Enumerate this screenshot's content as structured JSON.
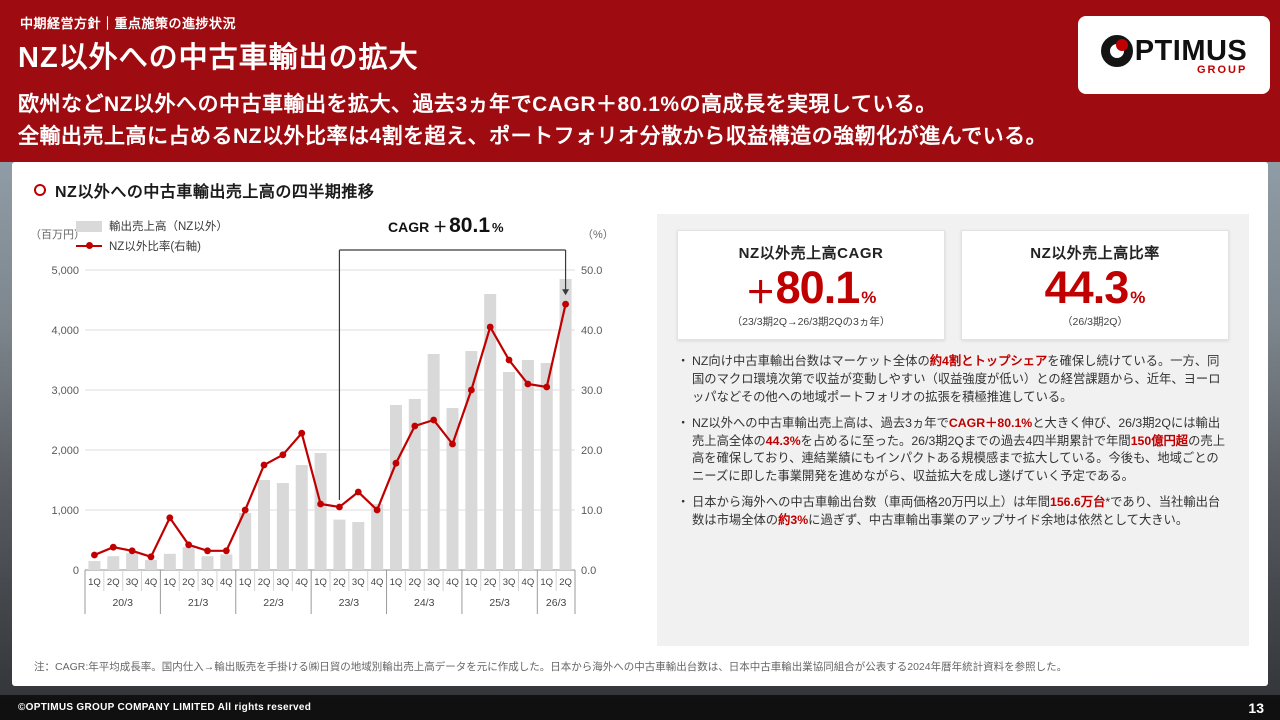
{
  "header": {
    "breadcrumb": "中期経営方針｜重点施策の進捗状況",
    "title": "NZ以外への中古車輸出の拡大",
    "subtitle_line1": "欧州などNZ以外への中古車輸出を拡大、過去3ヵ年でCAGR＋80.1%の高成長を実現している。",
    "subtitle_line2": "全輸出売上高に占めるNZ以外比率は4割を超え、ポートフォリオ分散から収益構造の強靭化が進んでいる。",
    "logo": {
      "wordmark": "PTIMUS",
      "group": "GROUP"
    }
  },
  "section": {
    "title": "NZ以外への中古車輸出売上高の四半期推移"
  },
  "chart": {
    "unit_left": "（百万円）",
    "unit_right": "（%）",
    "legend": [
      {
        "label": "輸出売上高（NZ以外）"
      },
      {
        "label": "NZ以外比率(右軸)"
      }
    ],
    "cagr": {
      "prefix": "CAGR ＋",
      "value": "80.1",
      "unit": "%"
    }
  },
  "chart_data": {
    "type": "combo-bar-line",
    "title": "NZ以外への中古車輸出売上高の四半期推移",
    "year_groups": [
      {
        "label": "20/3",
        "quarters": [
          "1Q",
          "2Q",
          "3Q",
          "4Q"
        ]
      },
      {
        "label": "21/3",
        "quarters": [
          "1Q",
          "2Q",
          "3Q",
          "4Q"
        ]
      },
      {
        "label": "22/3",
        "quarters": [
          "1Q",
          "2Q",
          "3Q",
          "4Q"
        ]
      },
      {
        "label": "23/3",
        "quarters": [
          "1Q",
          "2Q",
          "3Q",
          "4Q"
        ]
      },
      {
        "label": "24/3",
        "quarters": [
          "1Q",
          "2Q",
          "3Q",
          "4Q"
        ]
      },
      {
        "label": "25/3",
        "quarters": [
          "1Q",
          "2Q",
          "3Q",
          "4Q"
        ]
      },
      {
        "label": "26/3",
        "quarters": [
          "1Q",
          "2Q"
        ]
      }
    ],
    "axes": {
      "left": {
        "label": "（百万円）",
        "min": 0,
        "max": 5000,
        "ticks": [
          "0",
          "1,000",
          "2,000",
          "3,000",
          "4,000",
          "5,000"
        ]
      },
      "right": {
        "label": "（%）",
        "min": 0,
        "max": 50,
        "ticks": [
          "0.0",
          "10.0",
          "20.0",
          "30.0",
          "40.0",
          "50.0"
        ]
      }
    },
    "series": [
      {
        "name": "輸出売上高（NZ以外）",
        "kind": "bar",
        "axis": "left",
        "color": "#d9d9d9",
        "values": [
          150,
          230,
          280,
          170,
          270,
          380,
          230,
          260,
          950,
          1500,
          1450,
          1750,
          1950,
          840,
          800,
          1100,
          2750,
          2850,
          3600,
          2700,
          3650,
          4600,
          3300,
          3500,
          3450,
          4850
        ]
      },
      {
        "name": "NZ以外比率(右軸)",
        "kind": "line",
        "axis": "right",
        "color": "#c00000",
        "values": [
          2.5,
          3.8,
          3.2,
          2.2,
          8.7,
          4.2,
          3.2,
          3.2,
          10.0,
          17.5,
          19.2,
          22.8,
          11.0,
          10.5,
          13.0,
          10.0,
          17.8,
          24.0,
          25.0,
          21.0,
          30.0,
          40.5,
          35.0,
          31.0,
          30.5,
          44.3
        ]
      }
    ],
    "annotation": {
      "label": "CAGR ＋80.1%",
      "from_index": 13,
      "to_index": 25
    },
    "grid": true,
    "legend_position": "top-left"
  },
  "cards": [
    {
      "title": "NZ以外売上高CAGR",
      "value_prefix": "＋",
      "value": "80.1",
      "unit": "%",
      "caption": "（23/3期2Q→26/3期2Qの3ヵ年）"
    },
    {
      "title": "NZ以外売上高比率",
      "value_prefix": "",
      "value": "44.3",
      "unit": "%",
      "caption": "（26/3期2Q）"
    }
  ],
  "bullets": [
    {
      "marker": "・",
      "segments": [
        {
          "t": "NZ向け中古車輸出台数はマーケット全体の"
        },
        {
          "t": "約4割とトップシェア",
          "b": true
        },
        {
          "t": "を確保し続けている。一方、同国のマクロ環境次第で収益が変動しやすい（収益強度が低い）との経営課題から、近年、ヨーロッパなどその他への地域ポートフォリオの拡張を積極推進している。"
        }
      ]
    },
    {
      "marker": "・",
      "segments": [
        {
          "t": "NZ以外への中古車輸出売上高は、過去3ヵ年で"
        },
        {
          "t": "CAGR＋80.1%",
          "b": true
        },
        {
          "t": "と大きく伸び、26/3期2Qには輸出売上高全体の"
        },
        {
          "t": "44.3%",
          "b": true
        },
        {
          "t": "を占めるに至った。26/3期2Qまでの過去4四半期累計で年間"
        },
        {
          "t": "150億円超",
          "b": true
        },
        {
          "t": "の売上高を確保しており、連結業績にもインパクトある規模感まで拡大している。今後も、地域ごとのニーズに即した事業開発を進めながら、収益拡大を成し遂げていく予定である。"
        }
      ]
    },
    {
      "marker": "・",
      "segments": [
        {
          "t": "日本から海外への中古車輸出台数（車両価格20万円以上）は年間"
        },
        {
          "t": "156.6万台",
          "b": true
        },
        {
          "t": "*であり、当社輸出台数は市場全体の"
        },
        {
          "t": "約3%",
          "b": true
        },
        {
          "t": "に過ぎず、中古車輸出事業のアップサイド余地は依然として大きい。"
        }
      ]
    }
  ],
  "footnote": "注：CAGR:年平均成長率。国内仕入→輸出販売を手掛ける㈱日貿の地域別輸出売上高データを元に作成した。日本から海外への中古車輸出台数は、日本中古車輸出業協同組合が公表する2024年暦年統計資料を参照した。",
  "footer": {
    "copyright": "©OPTIMUS GROUP COMPANY LIMITED All rights reserved",
    "page": "13"
  },
  "colors": {
    "accent_red": "#c00000",
    "header_red": "#9e0b10",
    "bar_gray": "#d9d9d9",
    "sidebar_gray": "#f1f1f2"
  }
}
